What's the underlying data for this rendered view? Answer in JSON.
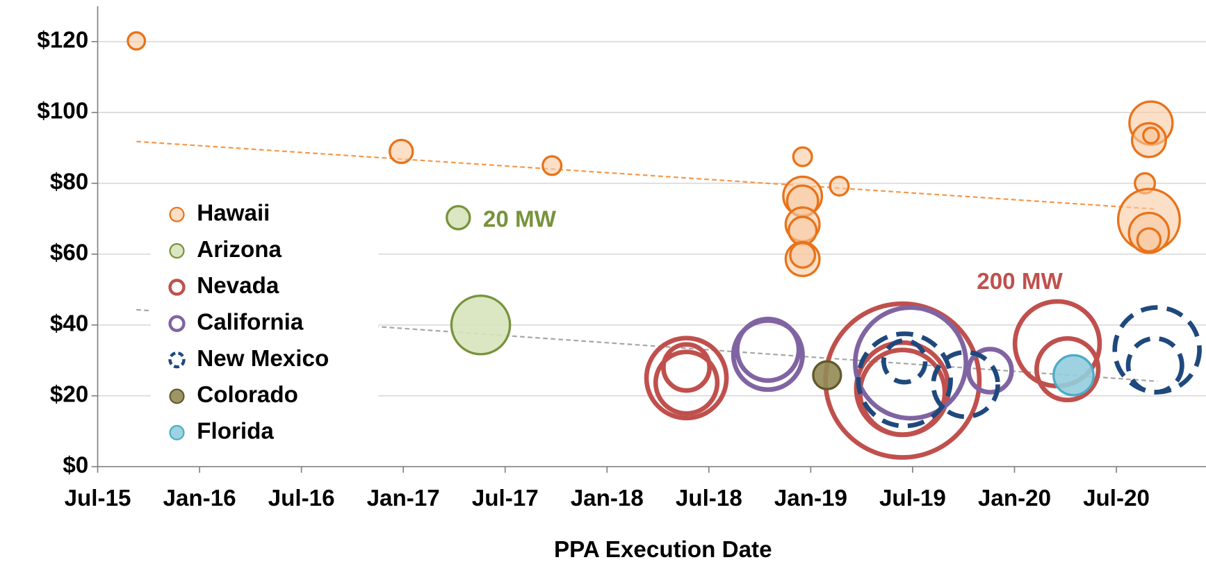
{
  "chart_data": {
    "type": "bubble",
    "x_label": "PPA Execution Date",
    "xlim": [
      2015.5,
      2020.94
    ],
    "xticks": [
      {
        "value": 2015.5,
        "label": "Jul-15"
      },
      {
        "value": 2016,
        "label": "Jan-16"
      },
      {
        "value": 2016.5,
        "label": "Jul-16"
      },
      {
        "value": 2017,
        "label": "Jan-17"
      },
      {
        "value": 2017.5,
        "label": "Jul-17"
      },
      {
        "value": 2018,
        "label": "Jan-18"
      },
      {
        "value": 2018.5,
        "label": "Jul-18"
      },
      {
        "value": 2019,
        "label": "Jan-19"
      },
      {
        "value": 2019.5,
        "label": "Jul-19"
      },
      {
        "value": 2020,
        "label": "Jan-20"
      },
      {
        "value": 2020.5,
        "label": "Jul-20"
      }
    ],
    "ylim": [
      0,
      130
    ],
    "yticks": [
      {
        "value": 0,
        "label": "$0"
      },
      {
        "value": 20,
        "label": "$20"
      },
      {
        "value": 40,
        "label": "$40"
      },
      {
        "value": 60,
        "label": "$60"
      },
      {
        "value": 80,
        "label": "$80"
      },
      {
        "value": 100,
        "label": "$100"
      },
      {
        "value": 120,
        "label": "$120"
      }
    ],
    "grid": true,
    "legend": "left",
    "series": [
      {
        "name": "Hawaii",
        "color": "#e8731a",
        "fill": "#f9c9a2",
        "x": [
          2015.69,
          2016.99,
          2017.73,
          2018.96,
          2018.96,
          2018.96,
          2018.96,
          2018.96,
          2018.96,
          2018.96,
          2019.14,
          2020.67,
          2020.66,
          2020.67,
          2020.64,
          2020.66,
          2020.66,
          2020.66
        ],
        "values": [
          120.2,
          89,
          85,
          87.5,
          76.4,
          75,
          68.4,
          66.6,
          58.6,
          59.7,
          79.2,
          97,
          92.2,
          93.5,
          80,
          69.7,
          66,
          64
        ],
        "sizes": [
          11,
          20,
          13,
          13,
          56,
          36,
          43,
          29,
          43,
          23,
          13,
          70,
          43,
          9,
          15,
          143,
          60,
          20
        ]
      },
      {
        "name": "Arizona",
        "color": "#77933c",
        "fill": "#d7e4bd",
        "x": [
          2017.27,
          2017.38
        ],
        "values": [
          70.3,
          40
        ],
        "sizes": [
          20,
          129
        ]
      },
      {
        "name": "Nevada",
        "color": "#c0504d",
        "fill": null,
        "x": [
          2018.39,
          2018.39,
          2018.39,
          2019.45,
          2019.45,
          2019.45,
          2020.21,
          2020.26
        ],
        "values": [
          25,
          28,
          23.7,
          24.3,
          22,
          21,
          34.7,
          27.5
        ],
        "sizes": [
          241,
          80,
          143,
          891,
          321,
          270,
          270,
          143
        ]
      },
      {
        "name": "California",
        "color": "#8064a2",
        "fill": null,
        "x": [
          2018.79,
          2018.79,
          2019.49,
          2019.88
        ],
        "values": [
          31.5,
          33,
          29.3,
          27.1
        ],
        "sizes": [
          180,
          143,
          462,
          70
        ]
      },
      {
        "name": "New Mexico",
        "color": "#1f497d",
        "fill": null,
        "dashed": true,
        "x": [
          2019.46,
          2019.46,
          2019.76,
          2020.7,
          2020.69
        ],
        "values": [
          29.7,
          24.5,
          23.2,
          33,
          28.6
        ],
        "sizes": [
          65,
          321,
          157,
          270,
          109
        ]
      },
      {
        "name": "Colorado",
        "color": "#5f5a2e",
        "fill": "#948a54",
        "x": [
          2019.08
        ],
        "values": [
          25.8
        ],
        "sizes": [
          29
        ]
      },
      {
        "name": "Florida",
        "color": "#4bacc6",
        "fill": "#93cddd",
        "x": [
          2020.29
        ],
        "values": [
          25.8
        ],
        "sizes": [
          60
        ]
      }
    ],
    "trend_lines": [
      {
        "color": "#f79646",
        "x": [
          2015.69,
          2020.7
        ],
        "values": [
          91.8,
          72.7
        ]
      },
      {
        "color": "#a6a6a6",
        "x": [
          2015.69,
          2020.7
        ],
        "values": [
          44.3,
          24.1
        ]
      }
    ],
    "annotations": [
      {
        "text": "20 MW",
        "color": "#77933c"
      },
      {
        "text": "200 MW",
        "color": "#c0504d"
      }
    ]
  }
}
